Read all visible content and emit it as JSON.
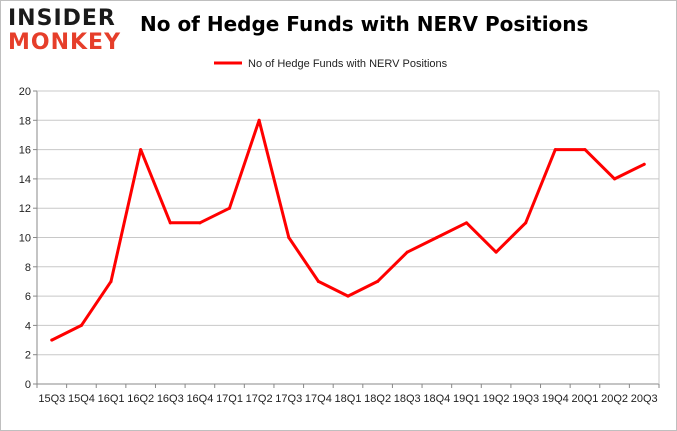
{
  "brand": {
    "logo_top": "INSIDER",
    "logo_bottom": "MONKEY",
    "color_dark": "#1a1a1a",
    "color_accent": "#e63e2a"
  },
  "chart_data": {
    "type": "line",
    "title": "No of Hedge Funds with NERV Positions",
    "xlabel": "",
    "ylabel": "",
    "categories": [
      "15Q3",
      "15Q4",
      "16Q1",
      "16Q2",
      "16Q3",
      "16Q4",
      "17Q1",
      "17Q2",
      "17Q3",
      "17Q4",
      "18Q1",
      "18Q2",
      "18Q3",
      "18Q4",
      "19Q1",
      "19Q2",
      "19Q3",
      "19Q4",
      "20Q1",
      "20Q2",
      "20Q3"
    ],
    "series": [
      {
        "name": "No of Hedge Funds with NERV Positions",
        "color": "#ff0000",
        "values": [
          3,
          4,
          7,
          16,
          11,
          11,
          12,
          18,
          10,
          7,
          6,
          7,
          9,
          10,
          11,
          9,
          11,
          16,
          16,
          14,
          15
        ]
      }
    ],
    "ylim": [
      0,
      20
    ],
    "yticks": [
      0,
      2,
      4,
      6,
      8,
      10,
      12,
      14,
      16,
      18,
      20
    ],
    "grid": true,
    "legend_position": "top-center"
  }
}
